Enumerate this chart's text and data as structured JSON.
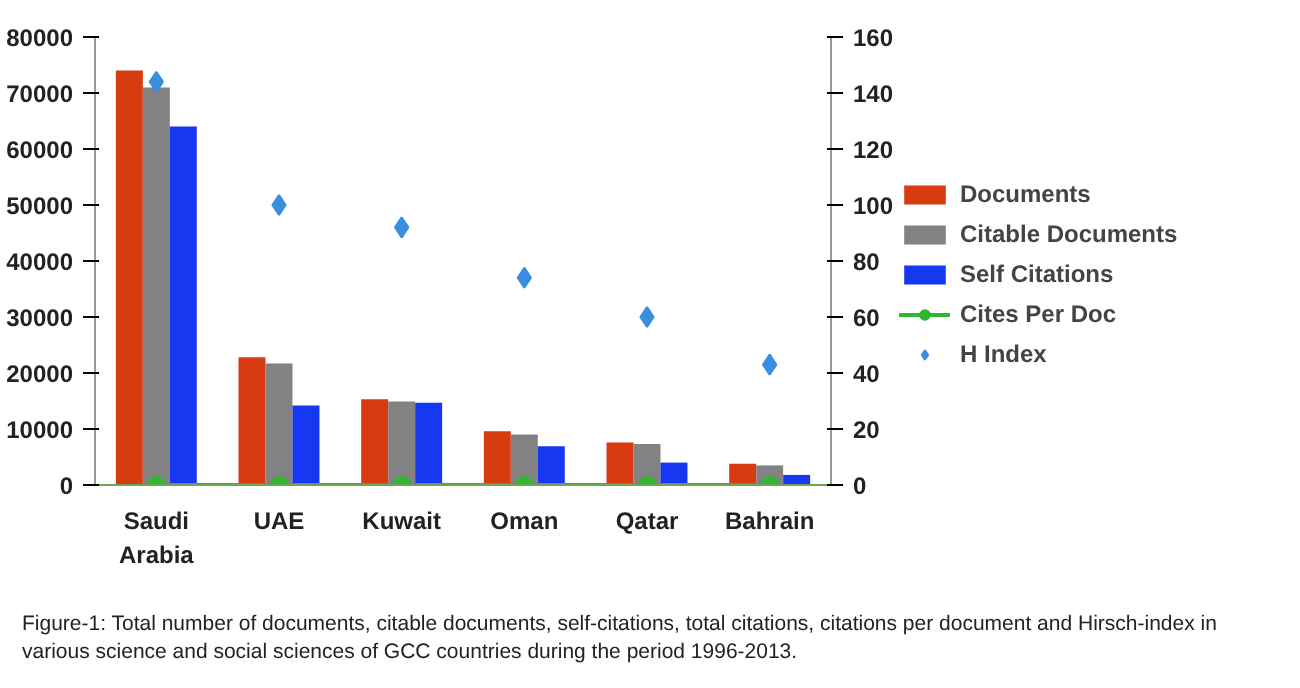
{
  "chart_data": {
    "type": "bar",
    "categories": [
      "Saudi Arabia",
      "UAE",
      "Kuwait",
      "Oman",
      "Qatar",
      "Bahrain"
    ],
    "series": [
      {
        "name": "Documents",
        "color": "#d83b0f",
        "values": [
          74000,
          22800,
          15300,
          9600,
          7600,
          3800
        ]
      },
      {
        "name": "Citable Documents",
        "color": "#828282",
        "values": [
          71000,
          21700,
          14900,
          9000,
          7300,
          3500
        ]
      },
      {
        "name": "Self Citations",
        "color": "#1538f0",
        "values": [
          64000,
          14200,
          14700,
          6900,
          4000,
          1800
        ]
      },
      {
        "name": "Cites Per Doc",
        "color": "#2eb82e",
        "type": "line",
        "marker": "circle",
        "axis": "y2",
        "values": [
          0,
          0,
          0,
          0,
          0,
          0
        ]
      },
      {
        "name": "H Index",
        "color": "#3a8ee0",
        "type": "scatter",
        "marker": "diamond",
        "axis": "y2",
        "values": [
          144,
          100,
          92,
          74,
          60,
          43
        ]
      }
    ],
    "ylim": [
      0,
      80000
    ],
    "yticks": [
      0,
      10000,
      20000,
      30000,
      40000,
      50000,
      60000,
      70000,
      80000
    ],
    "y2lim": [
      0,
      160
    ],
    "y2ticks": [
      0,
      20,
      40,
      60,
      80,
      100,
      120,
      140,
      160
    ],
    "grid": false,
    "legend": "right",
    "annotations": [
      "Figure-1: Total number of documents, citable documents, self-citations, total citations, citations per document and Hirsch-index in various science and social sciences of GCC countries during the period 1996-2013."
    ]
  }
}
